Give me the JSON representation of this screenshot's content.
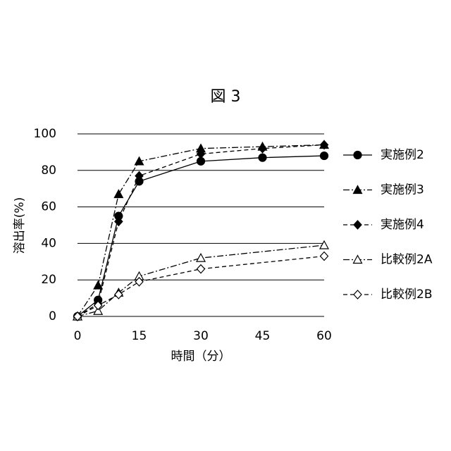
{
  "chart_data": {
    "type": "line",
    "title": "図 3",
    "xlabel": "時間（分）",
    "ylabel": "溶出率(%)",
    "xlim": [
      0,
      60
    ],
    "xticks": [
      0,
      15,
      30,
      45,
      60
    ],
    "ylim": [
      0,
      100
    ],
    "yticks": [
      0,
      20,
      40,
      60,
      80,
      100
    ],
    "grid": true,
    "legend": "right",
    "series": [
      {
        "name": "実施例2",
        "color": "#000000",
        "marker": "circle",
        "filled": true,
        "dash": "solid",
        "x": [
          0,
          5,
          10,
          15,
          30,
          45,
          60
        ],
        "values": [
          0,
          9,
          55,
          74,
          85,
          87,
          88
        ]
      },
      {
        "name": "実施例3",
        "color": "#000000",
        "marker": "triangle",
        "filled": true,
        "dash": "dashdot",
        "x": [
          0,
          5,
          10,
          15,
          30,
          45,
          60
        ],
        "values": [
          0,
          17,
          67,
          85,
          92,
          93,
          94
        ]
      },
      {
        "name": "実施例4",
        "color": "#000000",
        "marker": "diamond",
        "filled": true,
        "dash": "dashed",
        "x": [
          0,
          5,
          10,
          15,
          30,
          45,
          60
        ],
        "values": [
          0,
          7,
          52,
          77,
          89,
          92,
          94
        ]
      },
      {
        "name": "比較例2A",
        "color": "#000000",
        "marker": "triangle",
        "filled": false,
        "dash": "dashdot",
        "x": [
          0,
          5,
          10,
          15,
          30,
          60
        ],
        "values": [
          0,
          3,
          13,
          22,
          32,
          39
        ]
      },
      {
        "name": "比較例2B",
        "color": "#000000",
        "marker": "diamond",
        "filled": false,
        "dash": "dashed",
        "x": [
          0,
          5,
          10,
          15,
          30,
          60
        ],
        "values": [
          0,
          6,
          12,
          19,
          26,
          33
        ]
      }
    ]
  }
}
